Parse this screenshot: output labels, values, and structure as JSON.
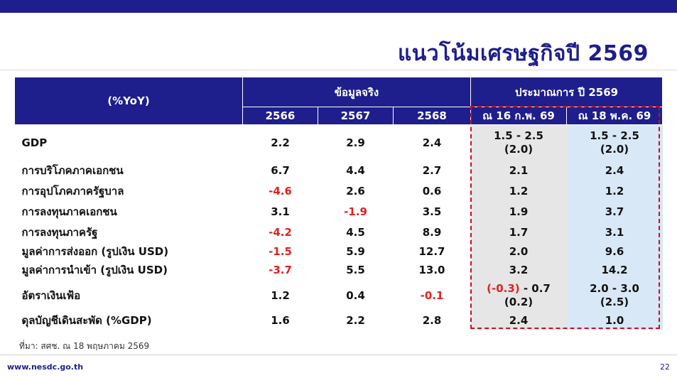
{
  "title": "แนวโน้มเศรษฐกิจปี 2569",
  "header": {
    "unit": "(%YoY)",
    "actual": "ข้อมูลจริง",
    "forecast": "ประมาณการ ปี 2569",
    "years": [
      "2566",
      "2567",
      "2568"
    ],
    "feb": "ณ 16 ก.พ. 69",
    "may": "ณ 18 พ.ค. 69"
  },
  "rows": [
    {
      "label": "GDP",
      "y2566": "2.2",
      "y2567": "2.9",
      "y2568": "2.4",
      "feb_a": "1.5 - 2.5",
      "feb_b": "(2.0)",
      "may_a": "1.5 - 2.5",
      "may_b": "(2.0)"
    },
    {
      "label": "การบริโภคภาคเอกชน",
      "y2566": "6.7",
      "y2567": "4.4",
      "y2568": "2.7",
      "feb": "2.1",
      "may": "2.4"
    },
    {
      "label": "การอุปโภคภาครัฐบาล",
      "y2566": "-4.6",
      "y2567": "2.6",
      "y2568": "0.6",
      "feb": "1.2",
      "may": "1.2"
    },
    {
      "label": "การลงทุนภาคเอกชน",
      "y2566": "3.1",
      "y2567": "-1.9",
      "y2568": "3.5",
      "feb": "1.9",
      "may": "3.7"
    },
    {
      "label": "การลงทุนภาครัฐ",
      "y2566": "-4.2",
      "y2567": "4.5",
      "y2568": "8.9",
      "feb": "1.7",
      "may": "3.1"
    },
    {
      "label": "มูลค่าการส่งออก (รูปเงิน USD)",
      "y2566": "-1.5",
      "y2567": "5.9",
      "y2568": "12.7",
      "feb": "2.0",
      "may": "9.6"
    },
    {
      "label": "มูลค่าการนำเข้า (รูปเงิน USD)",
      "y2566": "-3.7",
      "y2567": "5.5",
      "y2568": "13.0",
      "feb": "3.2",
      "may": "14.2"
    },
    {
      "label": "อัตราเงินเฟ้อ",
      "y2566": "1.2",
      "y2567": "0.4",
      "y2568": "-0.1",
      "feb_neg": "(-0.3)",
      "feb_rest": " - 0.7",
      "feb_b": "(0.2)",
      "may_a": "2.0 - 3.0",
      "may_b": "(2.5)"
    },
    {
      "label": "ดุลบัญชีเดินสะพัด (%GDP)",
      "y2566": "1.6",
      "y2567": "2.2",
      "y2568": "2.8",
      "feb": "2.4",
      "may": "1.0"
    }
  ],
  "source": "ที่มา: สศช. ณ 18 พฤษภาคม 2569",
  "footer": {
    "url": "www.nesdc.go.th",
    "page": "22"
  },
  "colors": {
    "navy": "#1e1e8c",
    "negative": "#e02020",
    "feb_col": "#e6e6e6",
    "may_col": "#d8e8f6",
    "dashed_box": "#c8101e"
  }
}
